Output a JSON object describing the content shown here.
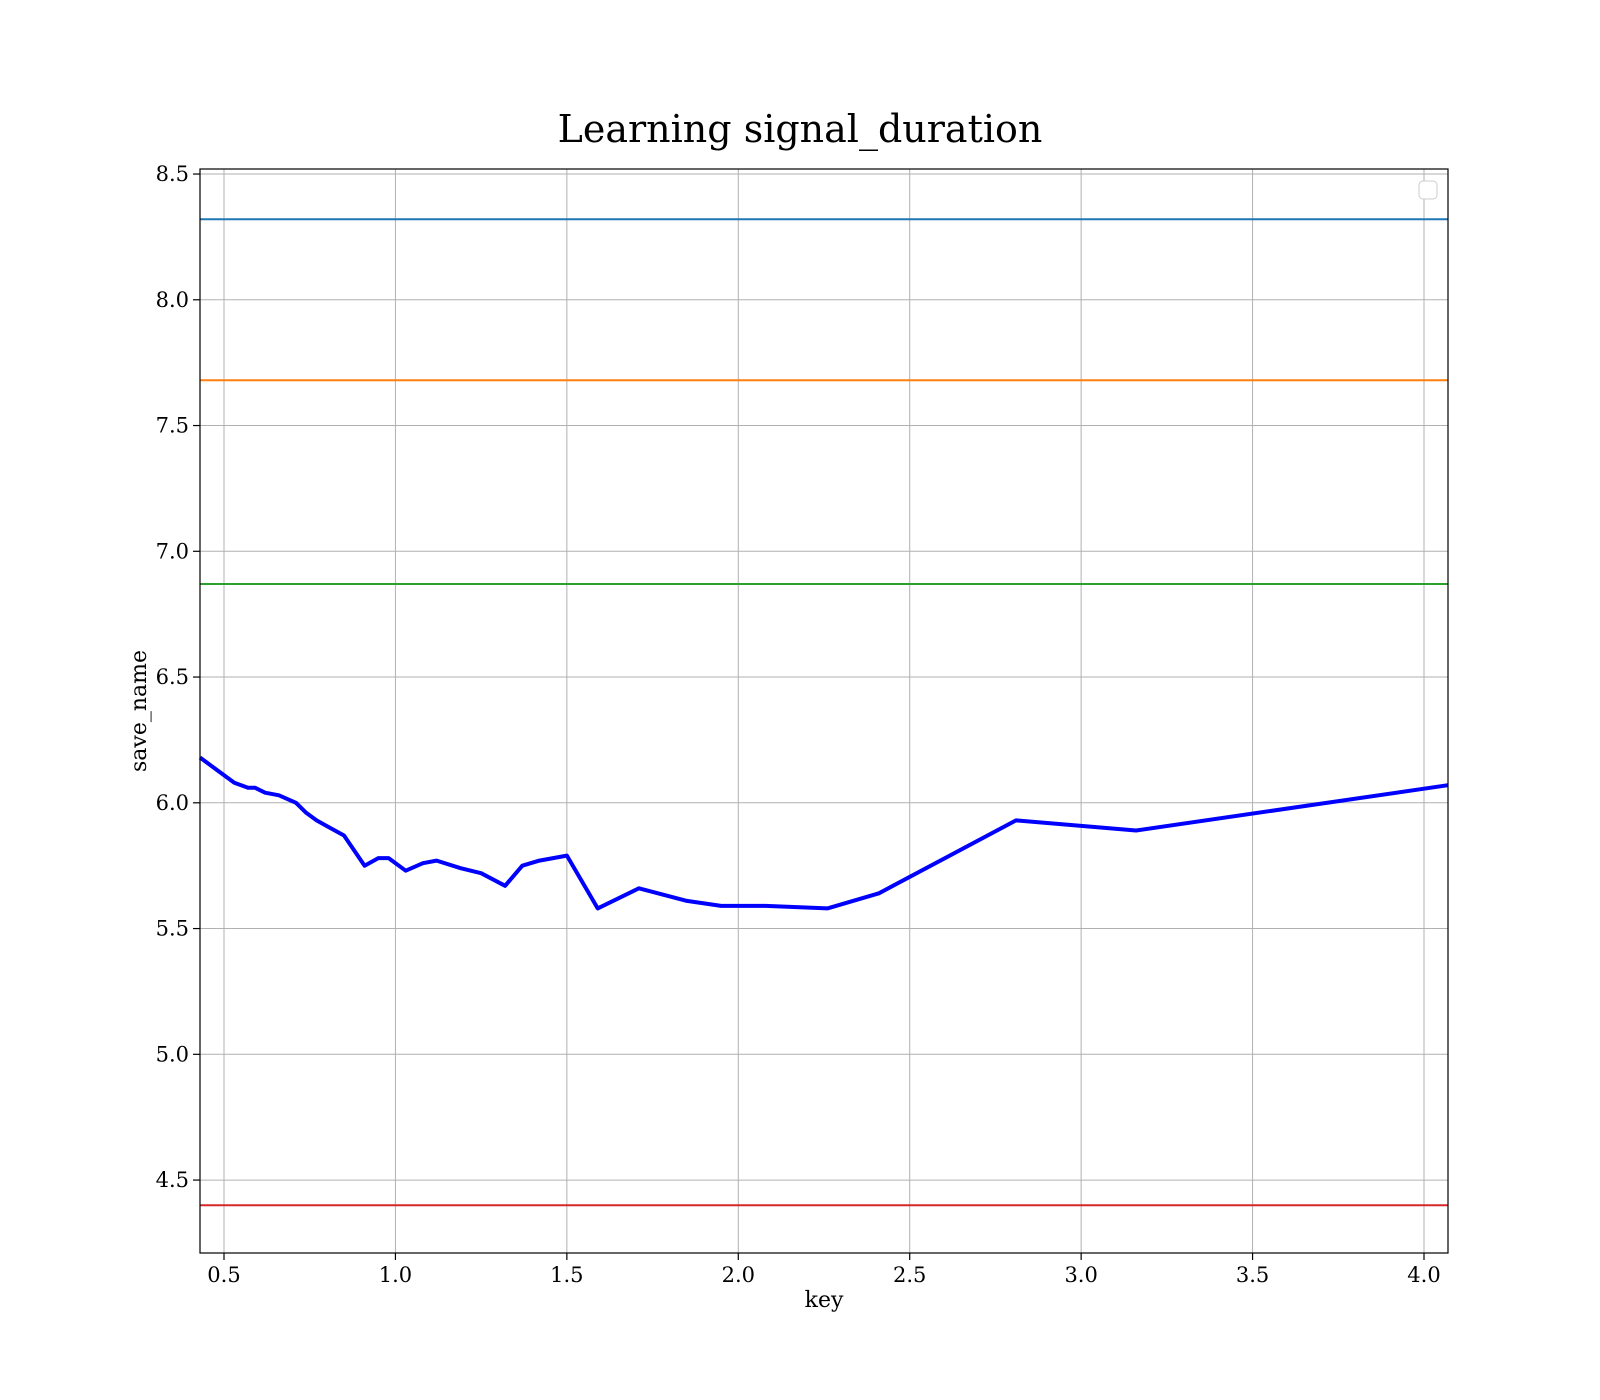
{
  "chart_data": {
    "type": "line",
    "title": "Learning signal_duration",
    "xlabel": "key",
    "ylabel": "save_name",
    "xlim": [
      0.43,
      4.07
    ],
    "ylim": [
      4.21,
      8.52
    ],
    "x_ticks": [
      0.5,
      1.0,
      1.5,
      2.0,
      2.5,
      3.0,
      3.5,
      4.0
    ],
    "x_tick_labels": [
      "0.5",
      "1.0",
      "1.5",
      "2.0",
      "2.5",
      "3.0",
      "3.5",
      "4.0"
    ],
    "y_ticks": [
      4.5,
      5.0,
      5.5,
      6.0,
      6.5,
      7.0,
      7.5,
      8.0,
      8.5
    ],
    "y_tick_labels": [
      "4.5",
      "5.0",
      "5.5",
      "6.0",
      "6.5",
      "7.0",
      "7.5",
      "8.0",
      "8.5"
    ],
    "grid": true,
    "legend": {
      "placement": "top-right",
      "entries": []
    },
    "hlines": [
      {
        "y": 8.32,
        "color": "#1f77b4"
      },
      {
        "y": 7.68,
        "color": "#ff7f0e"
      },
      {
        "y": 6.87,
        "color": "#2ca02c"
      },
      {
        "y": 4.4,
        "color": "#d62728"
      }
    ],
    "series": [
      {
        "color": "#0000ff",
        "x": [
          0.43,
          0.48,
          0.53,
          0.57,
          0.59,
          0.62,
          0.66,
          0.71,
          0.74,
          0.77,
          0.81,
          0.85,
          0.91,
          0.95,
          0.98,
          1.03,
          1.08,
          1.12,
          1.19,
          1.25,
          1.32,
          1.37,
          1.42,
          1.5,
          1.59,
          1.71,
          1.85,
          1.95,
          2.08,
          2.26,
          2.41,
          2.81,
          3.16,
          4.07
        ],
        "y": [
          6.18,
          6.13,
          6.08,
          6.06,
          6.06,
          6.04,
          6.03,
          6.0,
          5.96,
          5.93,
          5.9,
          5.87,
          5.75,
          5.78,
          5.78,
          5.73,
          5.76,
          5.77,
          5.74,
          5.72,
          5.67,
          5.75,
          5.77,
          5.79,
          5.58,
          5.66,
          5.61,
          5.59,
          5.59,
          5.58,
          5.64,
          5.93,
          5.89,
          6.07
        ]
      }
    ]
  }
}
